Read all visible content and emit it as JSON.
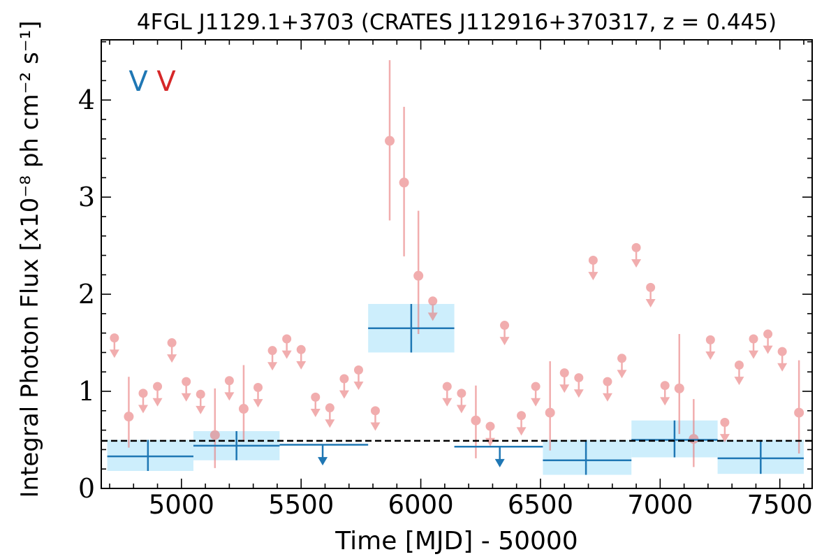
{
  "chart_data": {
    "type": "scatter",
    "title": "4FGL J1129.1+3703 (CRATES J112916+370317, z = 0.445)",
    "xlabel": "Time [MJD] - 50000",
    "ylabel": "Integral Photon Flux [x10⁻⁸ ph cm⁻² s⁻¹]",
    "xlim": [
      4665,
      7635
    ],
    "ylim": [
      0,
      4.62
    ],
    "xticks": [
      5000,
      5500,
      6000,
      6500,
      7000,
      7500
    ],
    "yticks": [
      0,
      1,
      2,
      3,
      4
    ],
    "legend": {
      "placement": "top-left",
      "entries": [
        "V",
        "V"
      ],
      "colors": [
        "#1f77b4",
        "#d62728"
      ]
    },
    "baseline": {
      "value": 0.49,
      "style": "dashed"
    },
    "series": [
      {
        "color": "#1f77b4",
        "band_color": "#cdeefc",
        "detections": [
          {
            "x": 4860,
            "x0": 4690,
            "x1": 5050,
            "y": 0.33,
            "ylo": 0.18,
            "yhi": 0.5
          },
          {
            "x": 5230,
            "x0": 5050,
            "x1": 5410,
            "y": 0.44,
            "ylo": 0.29,
            "yhi": 0.59
          },
          {
            "x": 5960,
            "x0": 5780,
            "x1": 6140,
            "y": 1.65,
            "ylo": 1.4,
            "yhi": 1.9
          },
          {
            "x": 6690,
            "x0": 6510,
            "x1": 6880,
            "y": 0.29,
            "ylo": 0.14,
            "yhi": 0.5
          },
          {
            "x": 7060,
            "x0": 6880,
            "x1": 7240,
            "y": 0.5,
            "ylo": 0.32,
            "yhi": 0.7
          },
          {
            "x": 7420,
            "x0": 7240,
            "x1": 7600,
            "y": 0.31,
            "ylo": 0.15,
            "yhi": 0.5
          }
        ],
        "upper_limits": [
          {
            "x": 5590,
            "x0": 5410,
            "x1": 5780,
            "y": 0.45
          },
          {
            "x": 6330,
            "x0": 6140,
            "x1": 6510,
            "y": 0.43
          }
        ]
      },
      {
        "color": "#e8787a",
        "detections": [
          {
            "x": 4780,
            "y": 0.74,
            "ylo": 0.42,
            "yhi": 1.15
          },
          {
            "x": 5140,
            "y": 0.55,
            "ylo": 0.21,
            "yhi": 1.03
          },
          {
            "x": 5260,
            "y": 0.82,
            "ylo": 0.48,
            "yhi": 1.27
          },
          {
            "x": 5870,
            "y": 3.58,
            "ylo": 2.76,
            "yhi": 4.41
          },
          {
            "x": 5930,
            "y": 3.15,
            "ylo": 2.39,
            "yhi": 3.93
          },
          {
            "x": 5990,
            "y": 2.19,
            "ylo": 1.59,
            "yhi": 2.86
          },
          {
            "x": 6230,
            "y": 0.7,
            "ylo": 0.31,
            "yhi": 1.06
          },
          {
            "x": 6540,
            "y": 0.78,
            "ylo": 0.39,
            "yhi": 1.31
          },
          {
            "x": 7080,
            "y": 1.03,
            "ylo": 0.56,
            "yhi": 1.59
          },
          {
            "x": 7140,
            "y": 0.51,
            "ylo": 0.22,
            "yhi": 0.92
          },
          {
            "x": 7580,
            "y": 0.78,
            "ylo": 0.36,
            "yhi": 1.32
          }
        ],
        "upper_limits": [
          {
            "x": 4720,
            "y": 1.55
          },
          {
            "x": 4840,
            "y": 0.98
          },
          {
            "x": 4900,
            "y": 1.05
          },
          {
            "x": 4960,
            "y": 1.5
          },
          {
            "x": 5020,
            "y": 1.1
          },
          {
            "x": 5080,
            "y": 0.97
          },
          {
            "x": 5200,
            "y": 1.11
          },
          {
            "x": 5320,
            "y": 1.04
          },
          {
            "x": 5380,
            "y": 1.42
          },
          {
            "x": 5440,
            "y": 1.54
          },
          {
            "x": 5500,
            "y": 1.43
          },
          {
            "x": 5560,
            "y": 0.94
          },
          {
            "x": 5620,
            "y": 0.83
          },
          {
            "x": 5680,
            "y": 1.13
          },
          {
            "x": 5740,
            "y": 1.22
          },
          {
            "x": 5810,
            "y": 0.8
          },
          {
            "x": 6050,
            "y": 1.93
          },
          {
            "x": 6110,
            "y": 1.05
          },
          {
            "x": 6170,
            "y": 0.98
          },
          {
            "x": 6290,
            "y": 0.64
          },
          {
            "x": 6350,
            "y": 1.68
          },
          {
            "x": 6420,
            "y": 0.75
          },
          {
            "x": 6480,
            "y": 1.05
          },
          {
            "x": 6600,
            "y": 1.19
          },
          {
            "x": 6660,
            "y": 1.14
          },
          {
            "x": 6720,
            "y": 2.35
          },
          {
            "x": 6780,
            "y": 1.1
          },
          {
            "x": 6840,
            "y": 1.34
          },
          {
            "x": 6900,
            "y": 2.48
          },
          {
            "x": 6960,
            "y": 2.07
          },
          {
            "x": 7020,
            "y": 1.06
          },
          {
            "x": 7210,
            "y": 1.53
          },
          {
            "x": 7270,
            "y": 0.68
          },
          {
            "x": 7330,
            "y": 1.27
          },
          {
            "x": 7390,
            "y": 1.54
          },
          {
            "x": 7450,
            "y": 1.59
          },
          {
            "x": 7510,
            "y": 1.41
          }
        ]
      }
    ]
  }
}
